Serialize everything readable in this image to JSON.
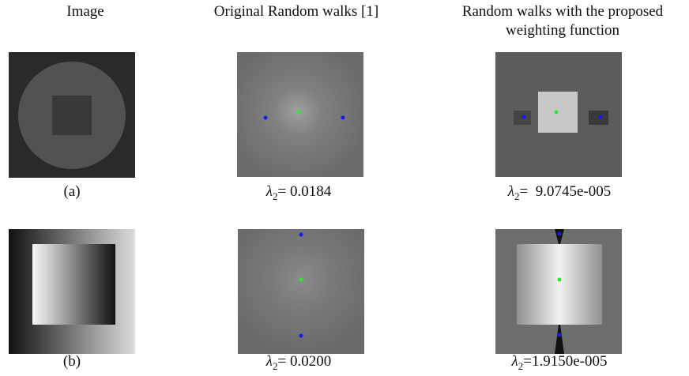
{
  "header": {
    "columns": [
      "Image",
      "Original Random walks [1]",
      "Random walks with the proposed weighting function"
    ]
  },
  "rows": [
    {
      "label": "(a)",
      "results": [
        {
          "symbol": "λ",
          "subscript": "2",
          "text": "= 0.0184"
        },
        {
          "symbol": "λ",
          "subscript": "2",
          "text": "=  9.0745e-005"
        }
      ]
    },
    {
      "label": "(b)",
      "results": [
        {
          "symbol": "λ",
          "subscript": "2",
          "text": "= 0.0200"
        },
        {
          "symbol": "λ",
          "subscript": "2",
          "text": "=1.9150e-005"
        }
      ]
    }
  ]
}
